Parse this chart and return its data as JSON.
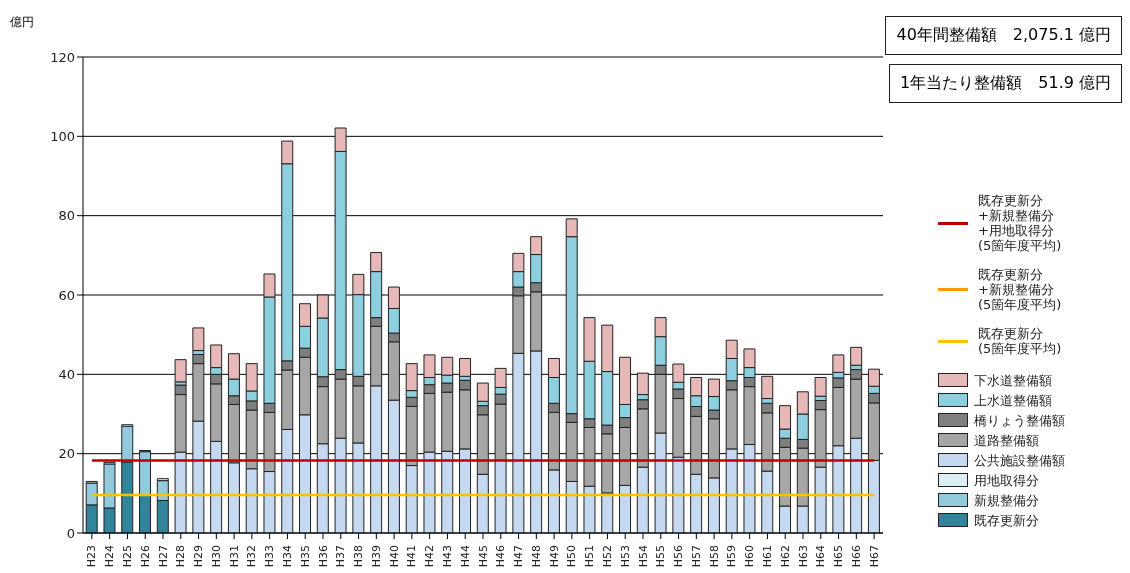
{
  "chart_data": {
    "type": "bar",
    "stacked": true,
    "ylabel": "億円",
    "annotations": [
      "40年間整備額　2,075.1 億円",
      "1年当たり整備額　51.9 億円"
    ],
    "categories": [
      "H23",
      "H24",
      "H25",
      "H26",
      "H27",
      "H28",
      "H29",
      "H30",
      "H31",
      "H32",
      "H33",
      "H34",
      "H35",
      "H36",
      "H37",
      "H38",
      "H39",
      "H40",
      "H41",
      "H42",
      "H43",
      "H44",
      "H45",
      "H46",
      "H47",
      "H48",
      "H49",
      "H50",
      "H51",
      "H52",
      "H53",
      "H54",
      "H55",
      "H56",
      "H57",
      "H58",
      "H59",
      "H60",
      "H61",
      "H62",
      "H63",
      "H64",
      "H65",
      "H66",
      "H67"
    ],
    "ylim": [
      0,
      120
    ],
    "yticks": [
      0,
      20,
      40,
      60,
      80,
      100,
      120
    ],
    "grid": "y",
    "legend": "right",
    "series": [
      {
        "name": "既存更新分",
        "color": "#31849b",
        "values": [
          7.1,
          6.3,
          17.9,
          9.5,
          8.2,
          null,
          null,
          null,
          null,
          null,
          null,
          null,
          null,
          null,
          null,
          null,
          null,
          null,
          null,
          null,
          null,
          null,
          null,
          null,
          null,
          null,
          null,
          null,
          null,
          null,
          null,
          null,
          null,
          null,
          null,
          null,
          null,
          null,
          null,
          null,
          null,
          null,
          null,
          null,
          null
        ]
      },
      {
        "name": "新規整備分",
        "color": "#93c9dc",
        "values": [
          5.5,
          11.1,
          9.0,
          11.0,
          5.0,
          null,
          null,
          null,
          null,
          null,
          null,
          null,
          null,
          null,
          null,
          null,
          null,
          null,
          null,
          null,
          null,
          null,
          null,
          null,
          null,
          null,
          null,
          null,
          null,
          null,
          null,
          null,
          null,
          null,
          null,
          null,
          null,
          null,
          null,
          null,
          null,
          null,
          null,
          null,
          null
        ]
      },
      {
        "name": "用地取得分",
        "color": "#dbeef4",
        "values": [
          0.4,
          0.4,
          0.4,
          0.3,
          0.5,
          null,
          null,
          null,
          null,
          null,
          null,
          null,
          null,
          null,
          null,
          null,
          null,
          null,
          null,
          null,
          null,
          null,
          null,
          null,
          null,
          null,
          null,
          null,
          null,
          null,
          null,
          null,
          null,
          null,
          null,
          null,
          null,
          null,
          null,
          null,
          null,
          null,
          null,
          null,
          null
        ]
      },
      {
        "name": "公共施設整備額",
        "color": "#c5d9f1",
        "values": [
          null,
          null,
          null,
          null,
          null,
          20.4,
          28.2,
          23.1,
          17.7,
          16.2,
          15.5,
          26.1,
          29.8,
          22.5,
          23.9,
          22.7,
          37.1,
          33.5,
          17.0,
          20.4,
          20.6,
          21.2,
          14.8,
          18.3,
          45.3,
          45.9,
          15.9,
          13.0,
          11.8,
          10.1,
          12.0,
          16.6,
          25.2,
          19.1,
          14.8,
          13.9,
          21.2,
          22.3,
          15.6,
          6.8,
          6.8,
          16.6,
          22.0,
          23.9,
          18.3
        ]
      },
      {
        "name": "道路整備額",
        "color": "#a6a6a6",
        "values": [
          null,
          null,
          null,
          null,
          null,
          14.5,
          14.5,
          14.5,
          14.7,
          14.8,
          14.9,
          15.0,
          14.5,
          14.4,
          14.9,
          14.4,
          15.0,
          14.7,
          14.9,
          14.8,
          14.9,
          14.9,
          15.0,
          14.2,
          14.5,
          14.9,
          14.5,
          14.9,
          14.8,
          14.9,
          14.6,
          14.7,
          14.8,
          14.8,
          14.6,
          14.9,
          14.9,
          14.6,
          14.7,
          14.8,
          14.6,
          14.5,
          14.7,
          14.9,
          14.5
        ]
      },
      {
        "name": "橋りょう整備額",
        "color": "#7f7f7f",
        "values": [
          null,
          null,
          null,
          null,
          null,
          2.4,
          2.3,
          2.4,
          2.2,
          2.3,
          2.3,
          2.3,
          2.3,
          2.5,
          2.4,
          2.4,
          2.2,
          2.2,
          2.3,
          2.2,
          2.3,
          2.4,
          2.3,
          2.5,
          2.2,
          2.3,
          2.3,
          2.2,
          2.2,
          2.2,
          2.5,
          2.3,
          2.3,
          2.4,
          2.5,
          2.2,
          2.3,
          2.3,
          2.4,
          2.3,
          2.2,
          2.3,
          2.4,
          2.4,
          2.4
        ]
      },
      {
        "name": "上水道整備額",
        "color": "#8ecfdf",
        "values": [
          null,
          null,
          null,
          null,
          null,
          0.8,
          1.0,
          1.7,
          4.2,
          2.5,
          26.8,
          49.7,
          5.5,
          14.8,
          55.0,
          20.6,
          11.6,
          6.2,
          1.7,
          1.8,
          2.0,
          1.0,
          1.1,
          1.7,
          3.9,
          7.1,
          6.5,
          44.6,
          14.5,
          13.5,
          3.3,
          1.3,
          7.2,
          1.7,
          2.7,
          3.4,
          5.6,
          2.5,
          1.2,
          2.3,
          6.4,
          1.1,
          1.4,
          1.1,
          1.8
        ]
      },
      {
        "name": "下水道整備額",
        "color": "#e6b9b8",
        "values": [
          null,
          null,
          null,
          null,
          null,
          5.6,
          5.7,
          5.7,
          6.4,
          6.9,
          5.8,
          5.7,
          5.7,
          5.8,
          5.9,
          5.1,
          4.8,
          5.4,
          6.8,
          5.7,
          4.5,
          4.5,
          4.6,
          4.8,
          4.6,
          4.5,
          4.8,
          4.5,
          11.0,
          11.7,
          11.9,
          5.4,
          4.8,
          4.6,
          4.6,
          4.4,
          4.6,
          4.7,
          5.6,
          5.9,
          5.6,
          4.7,
          4.4,
          4.5,
          4.3
        ]
      },
      {
        "name": "既存更新分\n+新規整備分\n+用地取得分\n(5箇年度平均)",
        "type": "line",
        "color": "#c00000",
        "values": [
          18.3,
          18.3,
          18.3,
          18.3,
          18.3,
          18.3,
          18.3,
          18.3,
          18.3,
          18.3,
          18.3,
          18.3,
          18.3,
          18.3,
          18.3,
          18.3,
          18.3,
          18.3,
          18.3,
          18.3,
          18.3,
          18.3,
          18.3,
          18.3,
          18.3,
          18.3,
          18.3,
          18.3,
          18.3,
          18.3,
          18.3,
          18.3,
          18.3,
          18.3,
          18.3,
          18.3,
          18.3,
          18.3,
          18.3,
          18.3,
          18.3,
          18.3,
          18.3,
          18.3,
          18.3
        ]
      },
      {
        "name": "既存更新分\n+新規整備分\n(5箇年度平均)",
        "type": "line",
        "color": "#ff9900",
        "values": [
          null,
          null,
          null,
          null,
          null,
          null,
          null,
          null,
          null,
          null,
          null,
          null,
          null,
          null,
          null,
          null,
          null,
          null,
          null,
          null,
          null,
          null,
          null,
          null,
          null,
          null,
          null,
          null,
          null,
          null,
          null,
          null,
          null,
          null,
          null,
          null,
          null,
          null,
          null,
          null,
          null,
          null,
          null,
          null,
          null
        ]
      },
      {
        "name": "既存更新分\n(5箇年度平均)",
        "type": "line",
        "color": "#ffc000",
        "values": [
          9.6,
          9.6,
          9.6,
          9.6,
          9.6,
          9.6,
          9.6,
          9.6,
          9.6,
          9.6,
          9.6,
          9.6,
          9.6,
          9.6,
          9.6,
          9.6,
          9.6,
          9.6,
          9.6,
          9.6,
          9.6,
          9.6,
          9.6,
          9.6,
          9.6,
          9.6,
          9.6,
          9.6,
          9.6,
          9.6,
          9.6,
          9.6,
          9.6,
          9.6,
          9.6,
          9.6,
          9.6,
          9.6,
          9.6,
          9.6,
          9.6,
          9.6,
          9.6,
          9.6,
          9.6
        ]
      }
    ]
  }
}
